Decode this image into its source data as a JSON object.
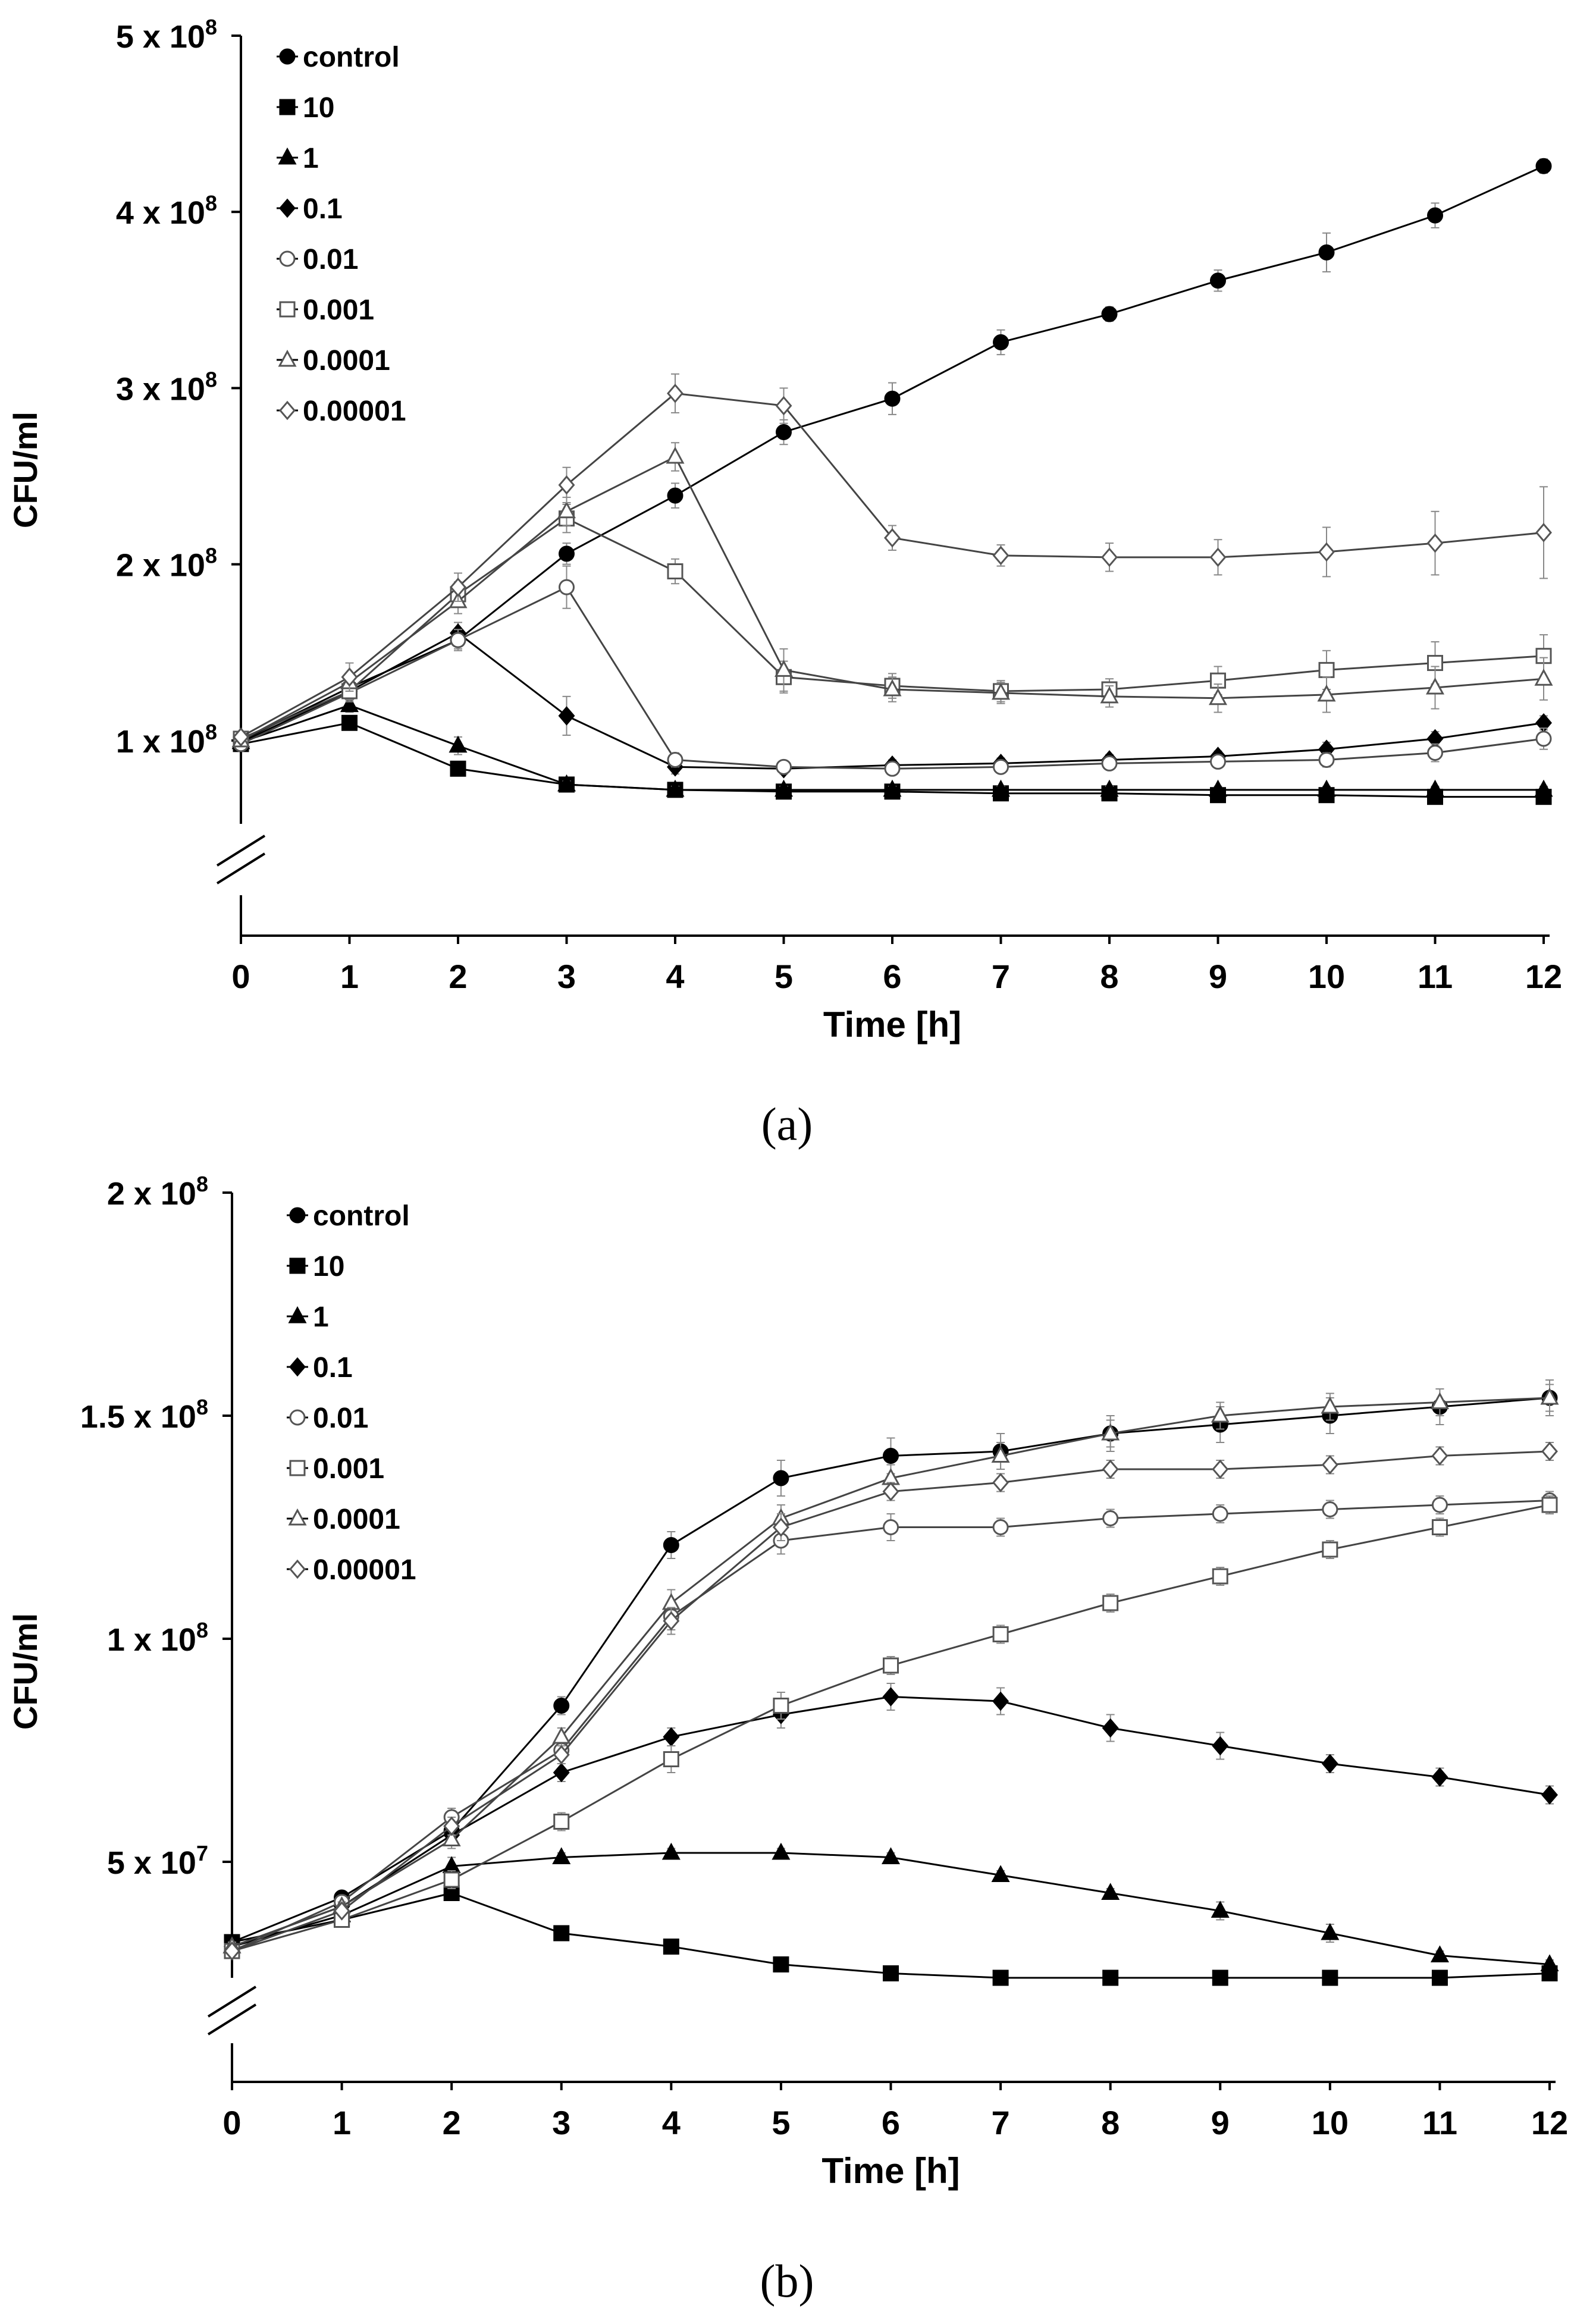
{
  "panel_labels": [
    "(a)",
    "(b)"
  ],
  "chart_data": [
    {
      "type": "line",
      "panel": "(a)",
      "xlabel": "Time [h]",
      "ylabel": "CFU/ml",
      "x": [
        0,
        1,
        2,
        3,
        4,
        5,
        6,
        7,
        8,
        9,
        10,
        11,
        12
      ],
      "xlim": [
        0,
        12
      ],
      "ylim": [
        50000000,
        500000000
      ],
      "y_ticks": [
        100000000,
        200000000,
        300000000,
        400000000,
        500000000
      ],
      "y_tick_labels": [
        {
          "mant": "1 x 10",
          "exp": "8"
        },
        {
          "mant": "2 x 10",
          "exp": "8"
        },
        {
          "mant": "3 x 10",
          "exp": "8"
        },
        {
          "mant": "4 x 10",
          "exp": "8"
        },
        {
          "mant": "5 x 10",
          "exp": "8"
        }
      ],
      "axis_break": true,
      "legend_position": "top-left",
      "series": [
        {
          "name": "control",
          "marker": "circle-filled",
          "values": [
            100000000,
            130000000,
            157000000,
            206000000,
            239000000,
            275000000,
            294000000,
            326000000,
            342000000,
            361000000,
            377000000,
            398000000,
            426000000
          ],
          "errors": [
            3000000,
            5000000,
            5000000,
            6000000,
            7000000,
            7000000,
            9000000,
            7000000,
            4000000,
            6000000,
            11000000,
            7000000,
            4000000
          ]
        },
        {
          "name": "10",
          "marker": "square-filled",
          "values": [
            98000000,
            110000000,
            84000000,
            75000000,
            72000000,
            71000000,
            71000000,
            70000000,
            70000000,
            69000000,
            69000000,
            68000000,
            68000000
          ],
          "errors": [
            2000000,
            4000000,
            3000000,
            2000000,
            2000000,
            2000000,
            2000000,
            2000000,
            2000000,
            2000000,
            2000000,
            2000000,
            2000000
          ]
        },
        {
          "name": "1",
          "marker": "triangle-filled",
          "values": [
            99000000,
            120000000,
            97000000,
            75000000,
            72000000,
            72000000,
            72000000,
            72000000,
            72000000,
            72000000,
            72000000,
            72000000,
            72000000
          ],
          "errors": [
            2000000,
            4000000,
            5000000,
            2000000,
            2000000,
            2000000,
            2000000,
            2000000,
            2000000,
            2000000,
            2000000,
            2000000,
            2000000
          ]
        },
        {
          "name": "0.1",
          "marker": "diamond-filled",
          "values": [
            99000000,
            128000000,
            161000000,
            114000000,
            85000000,
            84000000,
            86000000,
            87000000,
            89000000,
            91000000,
            95000000,
            101000000,
            110000000
          ],
          "errors": [
            2000000,
            5000000,
            6000000,
            11000000,
            4000000,
            3000000,
            3000000,
            3000000,
            3000000,
            3000000,
            4000000,
            4000000,
            4000000
          ]
        },
        {
          "name": "0.01",
          "marker": "circle-open",
          "values": [
            98000000,
            127000000,
            157000000,
            187000000,
            89000000,
            85000000,
            84000000,
            85000000,
            87000000,
            88000000,
            89000000,
            93000000,
            101000000
          ],
          "errors": [
            2000000,
            5000000,
            6000000,
            12000000,
            4000000,
            3000000,
            3000000,
            3000000,
            3000000,
            3000000,
            4000000,
            5000000,
            6000000
          ]
        },
        {
          "name": "0.001",
          "marker": "square-open",
          "values": [
            101000000,
            128000000,
            183000000,
            226000000,
            196000000,
            136000000,
            131000000,
            128000000,
            129000000,
            134000000,
            140000000,
            144000000,
            148000000
          ],
          "errors": [
            2000000,
            5000000,
            7000000,
            8000000,
            7000000,
            9000000,
            7000000,
            6000000,
            6000000,
            8000000,
            11000000,
            12000000,
            12000000
          ]
        },
        {
          "name": "0.0001",
          "marker": "triangle-open",
          "values": [
            100000000,
            133000000,
            179000000,
            230000000,
            261000000,
            140000000,
            129000000,
            127000000,
            125000000,
            124000000,
            126000000,
            130000000,
            135000000
          ],
          "errors": [
            2000000,
            5000000,
            7000000,
            8000000,
            8000000,
            12000000,
            7000000,
            6000000,
            6000000,
            8000000,
            10000000,
            12000000,
            12000000
          ]
        },
        {
          "name": "0.00001",
          "marker": "diamond-open",
          "values": [
            102000000,
            136000000,
            187000000,
            245000000,
            297000000,
            290000000,
            215000000,
            205000000,
            204000000,
            204000000,
            207000000,
            212000000,
            218000000
          ],
          "errors": [
            2000000,
            8000000,
            8000000,
            10000000,
            11000000,
            10000000,
            7000000,
            6000000,
            8000000,
            10000000,
            14000000,
            18000000,
            26000000
          ]
        }
      ]
    },
    {
      "type": "line",
      "panel": "(b)",
      "xlabel": "Time [h]",
      "ylabel": "CFU/ml",
      "x": [
        0,
        1,
        2,
        3,
        4,
        5,
        6,
        7,
        8,
        9,
        10,
        11,
        12
      ],
      "xlim": [
        0,
        12
      ],
      "ylim": [
        20000000,
        200000000
      ],
      "y_ticks": [
        50000000,
        100000000,
        150000000,
        200000000
      ],
      "y_tick_labels": [
        {
          "mant": "5 x 10",
          "exp": "7"
        },
        {
          "mant": "1 x 10",
          "exp": "8"
        },
        {
          "mant": "1.5 x 10",
          "exp": "8"
        },
        {
          "mant": "2 x 10",
          "exp": "8"
        }
      ],
      "axis_break": true,
      "legend_position": "top-left",
      "series": [
        {
          "name": "control",
          "marker": "circle-filled",
          "values": [
            32000000,
            42000000,
            57000000,
            85000000,
            121000000,
            136000000,
            141000000,
            142000000,
            146000000,
            148000000,
            150000000,
            152000000,
            154000000
          ],
          "errors": [
            1000000,
            1000000,
            2000000,
            2000000,
            3000000,
            4000000,
            4000000,
            4000000,
            4000000,
            4000000,
            4000000,
            4000000,
            4000000
          ]
        },
        {
          "name": "10",
          "marker": "square-filled",
          "values": [
            32000000,
            37000000,
            43000000,
            34000000,
            31000000,
            27000000,
            25000000,
            24000000,
            24000000,
            24000000,
            24000000,
            24000000,
            25000000
          ],
          "errors": [
            1000000,
            1000000,
            1000000,
            1000000,
            1000000,
            1000000,
            1000000,
            1000000,
            1000000,
            1000000,
            1000000,
            1000000,
            1000000
          ]
        },
        {
          "name": "1",
          "marker": "triangle-filled",
          "values": [
            31000000,
            38000000,
            49000000,
            51000000,
            52000000,
            52000000,
            51000000,
            47000000,
            43000000,
            39000000,
            34000000,
            29000000,
            27000000
          ],
          "errors": [
            1000000,
            1000000,
            2000000,
            1000000,
            1000000,
            1000000,
            1000000,
            1000000,
            1000000,
            2000000,
            2000000,
            1000000,
            1000000
          ]
        },
        {
          "name": "0.1",
          "marker": "diamond-filled",
          "values": [
            31000000,
            40000000,
            56000000,
            70000000,
            78000000,
            83000000,
            87000000,
            86000000,
            80000000,
            76000000,
            72000000,
            69000000,
            65000000
          ],
          "errors": [
            1000000,
            1000000,
            2000000,
            2000000,
            2000000,
            3000000,
            3000000,
            3000000,
            3000000,
            3000000,
            2000000,
            2000000,
            2000000
          ]
        },
        {
          "name": "0.01",
          "marker": "circle-open",
          "values": [
            30000000,
            41000000,
            60000000,
            75000000,
            105000000,
            122000000,
            125000000,
            125000000,
            127000000,
            128000000,
            129000000,
            130000000,
            131000000
          ],
          "errors": [
            1000000,
            1000000,
            2000000,
            2000000,
            3000000,
            3000000,
            3000000,
            2000000,
            2000000,
            2000000,
            2000000,
            2000000,
            2000000
          ]
        },
        {
          "name": "0.001",
          "marker": "square-open",
          "values": [
            30000000,
            37000000,
            46000000,
            59000000,
            73000000,
            85000000,
            94000000,
            101000000,
            108000000,
            114000000,
            120000000,
            125000000,
            130000000
          ],
          "errors": [
            1000000,
            1000000,
            2000000,
            2000000,
            3000000,
            3000000,
            2000000,
            2000000,
            2000000,
            2000000,
            2000000,
            2000000,
            2000000
          ]
        },
        {
          "name": "0.0001",
          "marker": "triangle-open",
          "values": [
            31000000,
            40000000,
            55000000,
            78000000,
            108000000,
            127000000,
            136000000,
            141000000,
            146000000,
            150000000,
            152000000,
            153000000,
            154000000
          ],
          "errors": [
            1000000,
            1000000,
            2000000,
            2000000,
            3000000,
            3000000,
            3000000,
            3000000,
            3000000,
            3000000,
            3000000,
            3000000,
            3000000
          ]
        },
        {
          "name": "0.00001",
          "marker": "diamond-open",
          "values": [
            30000000,
            39000000,
            58000000,
            74000000,
            104000000,
            125000000,
            133000000,
            135000000,
            138000000,
            138000000,
            139000000,
            141000000,
            142000000
          ],
          "errors": [
            1000000,
            1000000,
            2000000,
            2000000,
            3000000,
            3000000,
            2000000,
            2000000,
            2000000,
            2000000,
            2000000,
            2000000,
            2000000
          ]
        }
      ]
    }
  ]
}
